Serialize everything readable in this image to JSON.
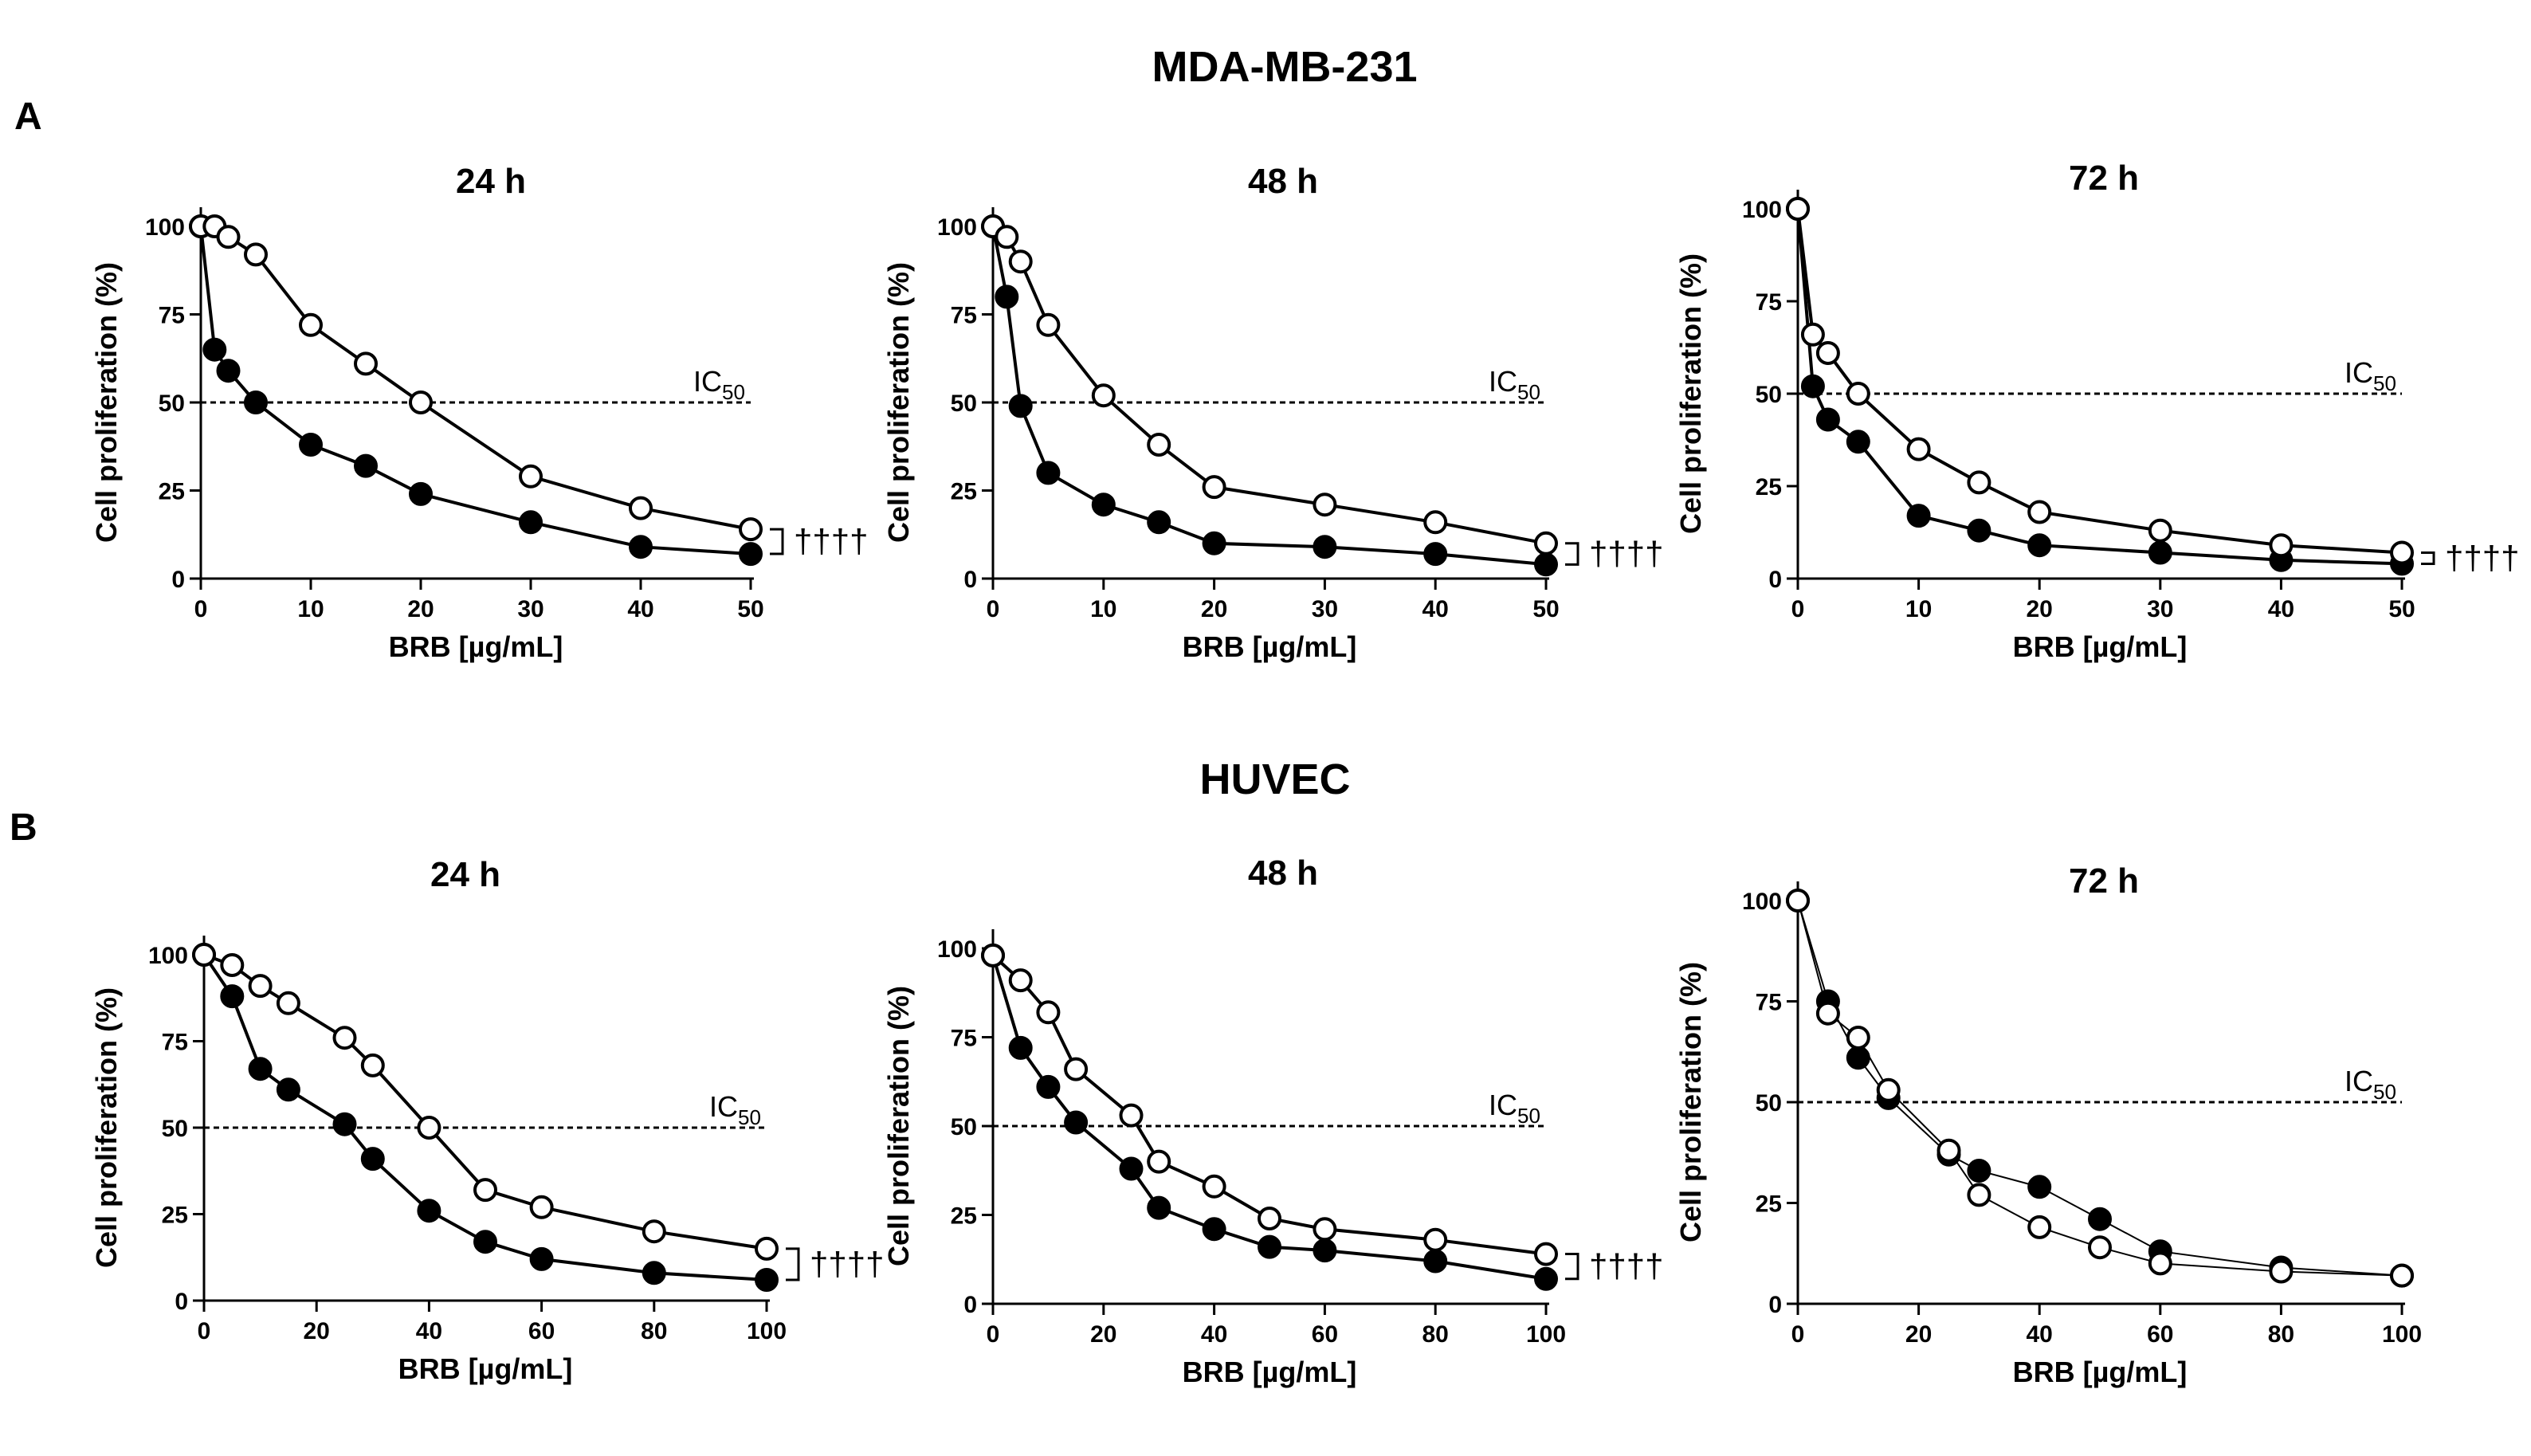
{
  "figure": {
    "panel_a_letter": "A",
    "panel_b_letter": "B",
    "row_a_title": "MDA-MB-231",
    "row_b_title": "HUVEC"
  },
  "colors": {
    "ink": "#000000",
    "open_fill": "#ffffff",
    "closed_fill": "#000000"
  },
  "chart_data": [
    {
      "type": "line",
      "panel": "A",
      "title": "24 h",
      "xlabel": "BRB [µg/mL]",
      "ylabel": "Cell proliferation (%)",
      "xlim": [
        0,
        50
      ],
      "ylim": [
        0,
        100
      ],
      "xticks": [
        0,
        10,
        20,
        30,
        40,
        50
      ],
      "yticks": [
        0,
        25,
        50,
        75,
        100
      ],
      "reference_line": {
        "y": 50,
        "label": "IC",
        "sub": "50"
      },
      "significance": "††††",
      "series": [
        {
          "name": "open circles",
          "marker": "open",
          "x": [
            0,
            1.25,
            2.5,
            5,
            10,
            15,
            20,
            30,
            40,
            50
          ],
          "y": [
            100,
            100,
            97,
            92,
            72,
            61,
            50,
            29,
            20,
            14
          ]
        },
        {
          "name": "filled circles",
          "marker": "filled",
          "x": [
            0,
            1.25,
            2.5,
            5,
            10,
            15,
            20,
            30,
            40,
            50
          ],
          "y": [
            100,
            65,
            59,
            50,
            38,
            32,
            24,
            16,
            9,
            7
          ]
        }
      ]
    },
    {
      "type": "line",
      "panel": "A",
      "title": "48 h",
      "xlabel": "BRB [µg/mL]",
      "ylabel": "Cell proliferation (%)",
      "xlim": [
        0,
        50
      ],
      "ylim": [
        0,
        100
      ],
      "xticks": [
        0,
        10,
        20,
        30,
        40,
        50
      ],
      "yticks": [
        0,
        25,
        50,
        75,
        100
      ],
      "reference_line": {
        "y": 50,
        "label": "IC",
        "sub": "50"
      },
      "significance": "††††",
      "series": [
        {
          "name": "open circles",
          "marker": "open",
          "x": [
            0,
            1.25,
            2.5,
            5,
            10,
            15,
            20,
            30,
            40,
            50
          ],
          "y": [
            100,
            97,
            90,
            72,
            52,
            38,
            26,
            21,
            16,
            10
          ]
        },
        {
          "name": "filled circles",
          "marker": "filled",
          "x": [
            0,
            1.25,
            2.5,
            5,
            10,
            15,
            20,
            30,
            40,
            50
          ],
          "y": [
            100,
            80,
            49,
            30,
            21,
            16,
            10,
            9,
            7,
            4
          ]
        }
      ]
    },
    {
      "type": "line",
      "panel": "A",
      "title": "72 h",
      "xlabel": "BRB [µg/mL]",
      "ylabel": "Cell proliferation (%)",
      "xlim": [
        0,
        50
      ],
      "ylim": [
        0,
        100
      ],
      "xticks": [
        0,
        10,
        20,
        30,
        40,
        50
      ],
      "yticks": [
        0,
        25,
        50,
        75,
        100
      ],
      "reference_line": {
        "y": 50,
        "label": "IC",
        "sub": "50"
      },
      "significance": "††††",
      "series": [
        {
          "name": "open circles",
          "marker": "open",
          "x": [
            0,
            1.25,
            2.5,
            5,
            10,
            15,
            20,
            30,
            40,
            50
          ],
          "y": [
            100,
            66,
            61,
            50,
            35,
            26,
            18,
            13,
            9,
            7
          ]
        },
        {
          "name": "filled circles",
          "marker": "filled",
          "x": [
            0,
            1.25,
            2.5,
            5,
            10,
            15,
            20,
            30,
            40,
            50
          ],
          "y": [
            100,
            52,
            43,
            37,
            17,
            13,
            9,
            7,
            5,
            4
          ]
        }
      ]
    },
    {
      "type": "line",
      "panel": "B",
      "title": "24 h",
      "xlabel": "BRB [µg/mL]",
      "ylabel": "Cell proliferation (%)",
      "xlim": [
        0,
        100
      ],
      "ylim": [
        0,
        100
      ],
      "xticks": [
        0,
        20,
        40,
        60,
        80,
        100
      ],
      "yticks": [
        0,
        25,
        50,
        75,
        100
      ],
      "reference_line": {
        "y": 50,
        "label": "IC",
        "sub": "50"
      },
      "significance": "††††",
      "series": [
        {
          "name": "open circles",
          "marker": "open",
          "x": [
            0,
            5,
            10,
            15,
            25,
            30,
            40,
            50,
            60,
            80,
            100
          ],
          "y": [
            100,
            97,
            91,
            86,
            76,
            68,
            50,
            32,
            27,
            20,
            15
          ]
        },
        {
          "name": "filled circles",
          "marker": "filled",
          "x": [
            0,
            5,
            10,
            15,
            25,
            30,
            40,
            50,
            60,
            80,
            100
          ],
          "y": [
            100,
            88,
            67,
            61,
            51,
            41,
            26,
            17,
            12,
            8,
            6
          ]
        }
      ]
    },
    {
      "type": "line",
      "panel": "B",
      "title": "48 h",
      "xlabel": "BRB [µg/mL]",
      "ylabel": "Cell proliferation (%)",
      "xlim": [
        0,
        100
      ],
      "ylim": [
        0,
        100
      ],
      "xticks": [
        0,
        20,
        40,
        60,
        80,
        100
      ],
      "yticks": [
        0,
        25,
        50,
        75,
        100
      ],
      "reference_line": {
        "y": 50,
        "label": "IC",
        "sub": "50"
      },
      "significance": "††††",
      "series": [
        {
          "name": "open circles",
          "marker": "open",
          "x": [
            0,
            5,
            10,
            15,
            25,
            30,
            40,
            50,
            60,
            80,
            100
          ],
          "y": [
            98,
            91,
            82,
            66,
            53,
            40,
            33,
            24,
            21,
            18,
            14
          ]
        },
        {
          "name": "filled circles",
          "marker": "filled",
          "x": [
            0,
            5,
            10,
            15,
            25,
            30,
            40,
            50,
            60,
            80,
            100
          ],
          "y": [
            98,
            72,
            61,
            51,
            38,
            27,
            21,
            16,
            15,
            12,
            7
          ]
        }
      ]
    },
    {
      "type": "line",
      "panel": "B",
      "title": "72 h",
      "xlabel": "BRB [µg/mL]",
      "ylabel": "Cell proliferation (%)",
      "xlim": [
        0,
        100
      ],
      "ylim": [
        0,
        100
      ],
      "xticks": [
        0,
        20,
        40,
        60,
        80,
        100
      ],
      "yticks": [
        0,
        25,
        50,
        75,
        100
      ],
      "reference_line": {
        "y": 50,
        "label": "IC",
        "sub": "50"
      },
      "significance": "",
      "series": [
        {
          "name": "filled circles",
          "marker": "filled",
          "x": [
            0,
            5,
            10,
            15,
            25,
            30,
            40,
            50,
            60,
            80,
            100
          ],
          "y": [
            100,
            75,
            61,
            51,
            37,
            33,
            29,
            21,
            13,
            9,
            7
          ]
        },
        {
          "name": "open circles",
          "marker": "open",
          "x": [
            0,
            5,
            10,
            15,
            25,
            30,
            40,
            50,
            60,
            80,
            100
          ],
          "y": [
            100,
            72,
            66,
            53,
            38,
            27,
            19,
            14,
            10,
            8,
            7
          ]
        }
      ]
    }
  ]
}
